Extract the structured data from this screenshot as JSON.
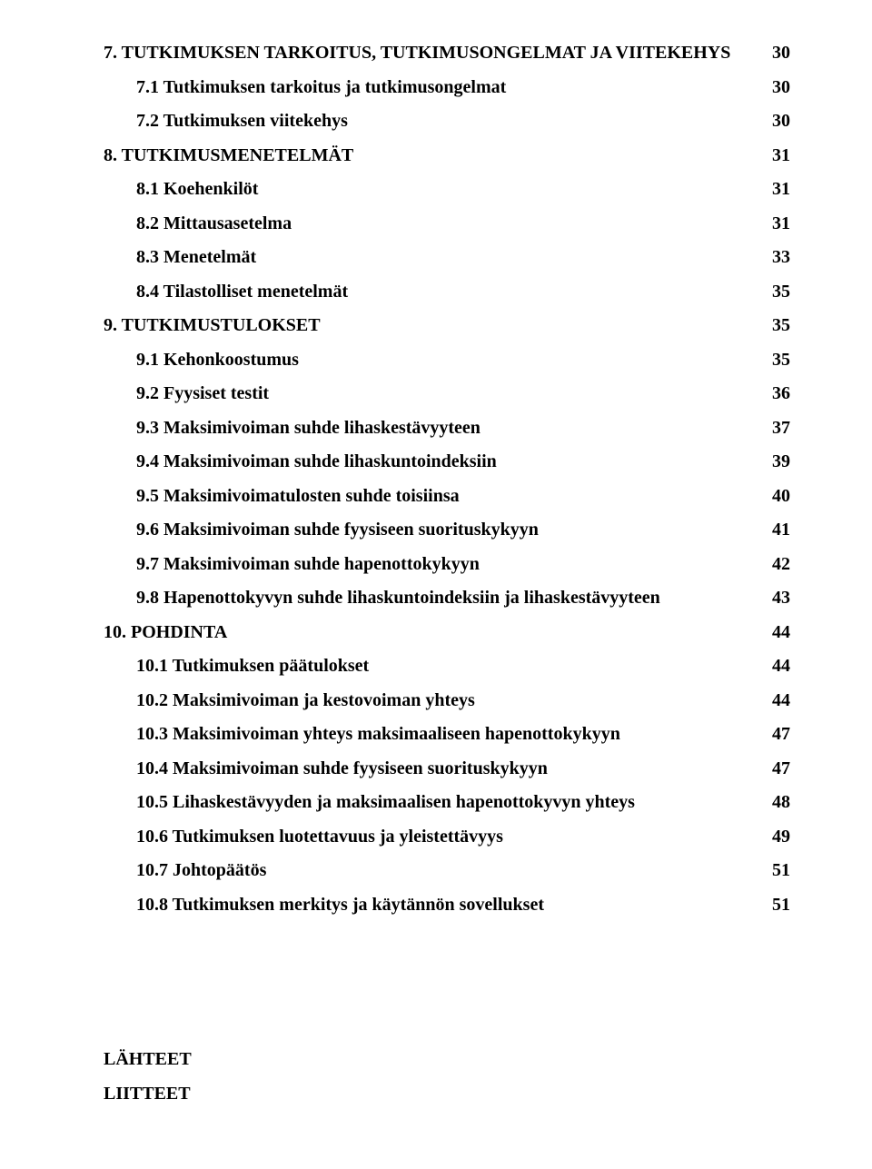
{
  "toc": [
    {
      "label": "7. TUTKIMUKSEN TARKOITUS, TUTKIMUSONGELMAT JA VIITEKEHYS",
      "page": "30",
      "indent": 0
    },
    {
      "label": "7.1  Tutkimuksen tarkoitus ja tutkimusongelmat",
      "page": "30",
      "indent": 1
    },
    {
      "label": "7.2  Tutkimuksen viitekehys",
      "page": "30",
      "indent": 1
    },
    {
      "label": "8. TUTKIMUSMENETELMÄT",
      "page": "31",
      "indent": 0
    },
    {
      "label": "8.1  Koehenkilöt",
      "page": "31",
      "indent": 1
    },
    {
      "label": "8.2  Mittausasetelma",
      "page": "31",
      "indent": 1
    },
    {
      "label": "8.3  Menetelmät",
      "page": "33",
      "indent": 1
    },
    {
      "label": "8.4  Tilastolliset menetelmät",
      "page": "35",
      "indent": 1
    },
    {
      "label": "9. TUTKIMUSTULOKSET",
      "page": "35",
      "indent": 0
    },
    {
      "label": "9.1  Kehonkoostumus",
      "page": "35",
      "indent": 1
    },
    {
      "label": "9.2  Fyysiset testit",
      "page": "36",
      "indent": 1
    },
    {
      "label": "9.3  Maksimivoiman suhde lihaskestävyyteen",
      "page": "37",
      "indent": 1
    },
    {
      "label": "9.4  Maksimivoiman suhde lihaskuntoindeksiin",
      "page": "39",
      "indent": 1
    },
    {
      "label": "9.5  Maksimivoimatulosten suhde toisiinsa",
      "page": "40",
      "indent": 1
    },
    {
      "label": "9.6  Maksimivoiman suhde fyysiseen suorituskykyyn",
      "page": "41",
      "indent": 1
    },
    {
      "label": "9.7  Maksimivoiman suhde hapenottokykyyn",
      "page": "42",
      "indent": 1
    },
    {
      "label": "9.8  Hapenottokyvyn suhde lihaskuntoindeksiin ja lihaskestävyyteen",
      "page": "43",
      "indent": 1
    },
    {
      "label": "10. POHDINTA",
      "page": "44",
      "indent": 0
    },
    {
      "label": "10.1 Tutkimuksen päätulokset",
      "page": "44",
      "indent": 1
    },
    {
      "label": "10.2 Maksimivoiman ja kestovoiman yhteys",
      "page": "44",
      "indent": 1
    },
    {
      "label": "10.3 Maksimivoiman yhteys maksimaaliseen hapenottokykyyn",
      "page": "47",
      "indent": 1
    },
    {
      "label": "10.4 Maksimivoiman suhde fyysiseen suorituskykyyn",
      "page": "47",
      "indent": 1
    },
    {
      "label": "10.5 Lihaskestävyyden ja maksimaalisen hapenottokyvyn yhteys",
      "page": "48",
      "indent": 1
    },
    {
      "label": "10.6 Tutkimuksen luotettavuus ja yleistettävyys",
      "page": "49",
      "indent": 1
    },
    {
      "label": "10.7 Johtopäätös",
      "page": "51",
      "indent": 1
    },
    {
      "label": "10.8 Tutkimuksen merkitys ja käytännön sovellukset",
      "page": "51",
      "indent": 1
    }
  ],
  "footer": {
    "line1": "LÄHTEET",
    "line2": "LIITTEET"
  }
}
